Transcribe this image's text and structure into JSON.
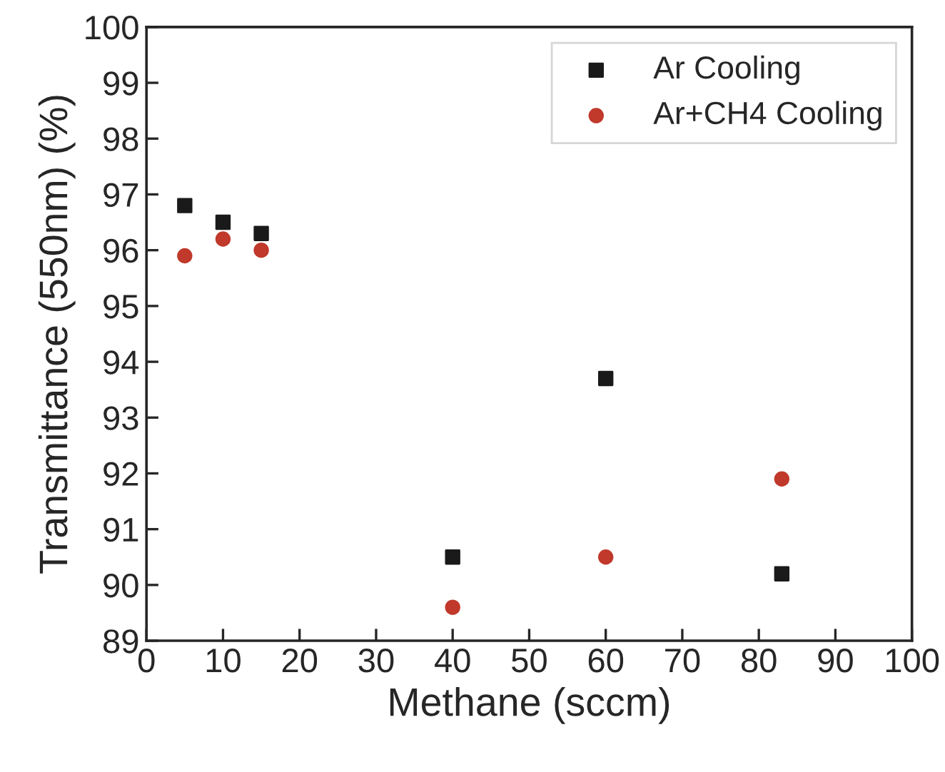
{
  "chart_data": {
    "type": "scatter",
    "xlabel": "Methane (sccm)",
    "ylabel": "Transmittance (550nm) (%)",
    "series": [
      {
        "name": "Ar Cooling",
        "color": "#1a1a1a",
        "marker": "square",
        "x": [
          5,
          10,
          15,
          40,
          60,
          83
        ],
        "values": [
          96.8,
          96.5,
          96.3,
          90.5,
          93.7,
          90.2
        ]
      },
      {
        "name": "Ar+CH4 Cooling",
        "color": "#c0392b",
        "marker": "circle",
        "x": [
          5,
          10,
          15,
          40,
          60,
          83
        ],
        "values": [
          95.9,
          96.2,
          96.0,
          89.6,
          90.5,
          91.9
        ]
      }
    ],
    "xlim": [
      0,
      100
    ],
    "xticks": [
      0,
      10,
      20,
      30,
      40,
      50,
      60,
      70,
      80,
      90,
      100
    ],
    "ylim": [
      89,
      100
    ],
    "yticks": [
      89,
      90,
      91,
      92,
      93,
      94,
      95,
      96,
      97,
      98,
      99,
      100
    ],
    "grid": false,
    "legend": "top right"
  }
}
